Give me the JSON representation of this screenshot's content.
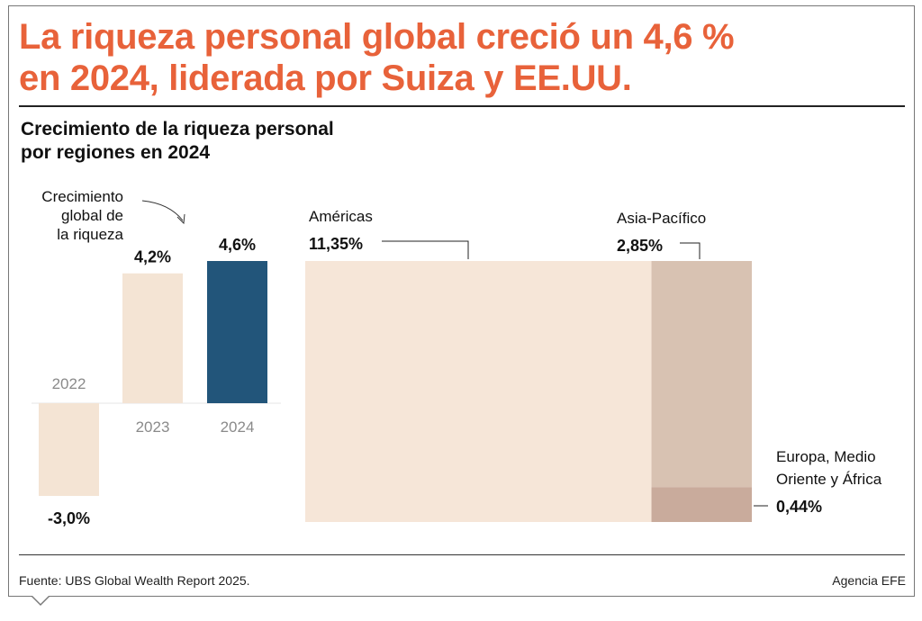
{
  "headline": {
    "line1": "La riqueza personal global creció un 4,6 %",
    "line2": "en 2024, liderada por Suiza y EE.UU."
  },
  "subtitle": {
    "line1": "Crecimiento de la riqueza personal",
    "line2": "por regiones en 2024"
  },
  "footer": {
    "source": "Fuente: UBS Global Wealth Report 2025.",
    "credit": "Agencia EFE"
  },
  "colors": {
    "headline": "#e8623a",
    "bar_light": "#f4e4d4",
    "bar_highlight": "#22557a",
    "americas": "#f6e6d8",
    "asia": "#d8c2b2",
    "europe": "#c9ab9c"
  },
  "chart_data": [
    {
      "type": "bar",
      "annotation": [
        "Crecimiento",
        "global de",
        "la riqueza"
      ],
      "categories": [
        "2022",
        "2023",
        "2024"
      ],
      "values": [
        -3.0,
        4.2,
        4.6
      ],
      "value_labels": [
        "-3,0%",
        "4,2%",
        "4,6%"
      ],
      "highlight": "2024",
      "unit": "%",
      "ylim": [
        -3.0,
        4.6
      ]
    },
    {
      "type": "area",
      "title": "Crecimiento de la riqueza personal por regiones en 2024",
      "series": [
        {
          "name": "Américas",
          "value": 11.35,
          "label": "11,35%"
        },
        {
          "name": "Asia-Pacífico",
          "value": 2.85,
          "label": "2,85%"
        },
        {
          "name": "Europa, Medio Oriente y África",
          "value": 0.44,
          "label": "0,44%",
          "label_lines": [
            "Europa, Medio",
            "Oriente y África"
          ]
        }
      ],
      "unit": "%"
    }
  ]
}
